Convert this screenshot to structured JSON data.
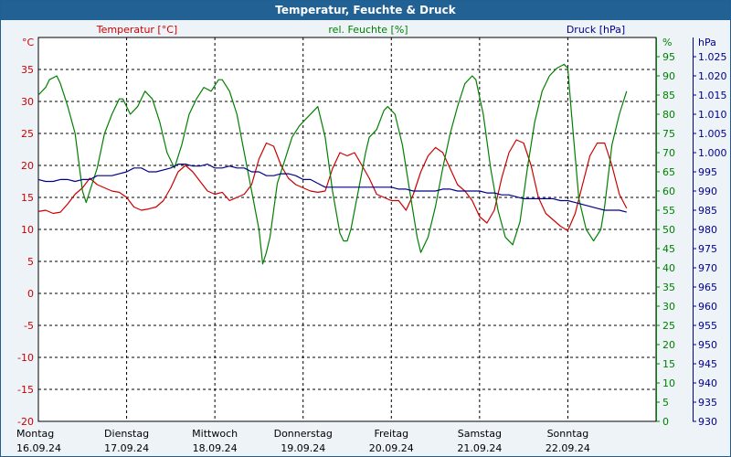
{
  "window": {
    "title": "Temperatur, Feuchte & Druck"
  },
  "colors": {
    "temperature": "#cc0000",
    "humidity": "#008000",
    "pressure": "#00008b",
    "background": "#eef3f8",
    "titlebar": "#226193",
    "grid": "#000000"
  },
  "chart_data": {
    "type": "line",
    "title": "Temperatur, Feuchte & Druck",
    "x_range_hours": [
      0,
      168
    ],
    "x_ticks": [
      {
        "hour": 0,
        "day": "Montag",
        "date": "16.09.24"
      },
      {
        "hour": 24,
        "day": "Dienstag",
        "date": "17.09.24"
      },
      {
        "hour": 48,
        "day": "Mittwoch",
        "date": "18.09.24"
      },
      {
        "hour": 72,
        "day": "Donnerstag",
        "date": "19.09.24"
      },
      {
        "hour": 96,
        "day": "Freitag",
        "date": "20.09.24"
      },
      {
        "hour": 120,
        "day": "Samstag",
        "date": "21.09.24"
      },
      {
        "hour": 144,
        "day": "Sonntag",
        "date": "22.09.24"
      }
    ],
    "axes": {
      "temperature": {
        "label": "Temperatur [°C]",
        "unit": "°C",
        "range": [
          -20,
          40
        ],
        "ticks": [
          -20,
          -15,
          -10,
          -5,
          0,
          5,
          10,
          15,
          20,
          25,
          30,
          35
        ]
      },
      "humidity": {
        "label": "rel. Feuchte [%]",
        "unit": "%",
        "range": [
          0,
          100
        ],
        "ticks": [
          "0",
          "5",
          "10",
          "15",
          "20",
          "25",
          "30",
          "35",
          "40",
          "45",
          "50",
          "55",
          "60",
          "65",
          "70",
          "75",
          "80",
          "85",
          "90",
          "95"
        ]
      },
      "pressure": {
        "label": "Druck [hPa]",
        "unit": "hPa",
        "range": [
          930,
          1030
        ],
        "ticks": [
          "930",
          "935",
          "940",
          "945",
          "950",
          "955",
          "960",
          "965",
          "970",
          "975",
          "980",
          "985",
          "990",
          "995",
          "1.000",
          "1.005",
          "1.010",
          "1.015",
          "1.020",
          "1.025"
        ]
      }
    },
    "series": [
      {
        "name": "Temperatur",
        "axis": "temperature",
        "points": [
          [
            0,
            12.8
          ],
          [
            2,
            13
          ],
          [
            4,
            12.5
          ],
          [
            6,
            12.7
          ],
          [
            8,
            14
          ],
          [
            10,
            15.5
          ],
          [
            12,
            16.5
          ],
          [
            14,
            18
          ],
          [
            16,
            17
          ],
          [
            18,
            16.5
          ],
          [
            20,
            16
          ],
          [
            22,
            15.8
          ],
          [
            24,
            15
          ],
          [
            26,
            13.5
          ],
          [
            28,
            13
          ],
          [
            30,
            13.2
          ],
          [
            32,
            13.5
          ],
          [
            34,
            14.5
          ],
          [
            36,
            16.5
          ],
          [
            38,
            19
          ],
          [
            40,
            20
          ],
          [
            42,
            19
          ],
          [
            44,
            17.5
          ],
          [
            46,
            16
          ],
          [
            48,
            15.5
          ],
          [
            50,
            15.8
          ],
          [
            52,
            14.5
          ],
          [
            54,
            15
          ],
          [
            56,
            15.5
          ],
          [
            58,
            17
          ],
          [
            60,
            21
          ],
          [
            62,
            23.5
          ],
          [
            64,
            23
          ],
          [
            66,
            20
          ],
          [
            68,
            18
          ],
          [
            70,
            17
          ],
          [
            72,
            16.5
          ],
          [
            74,
            16
          ],
          [
            76,
            15.8
          ],
          [
            78,
            16
          ],
          [
            80,
            19.5
          ],
          [
            82,
            22
          ],
          [
            84,
            21.5
          ],
          [
            86,
            22
          ],
          [
            88,
            20
          ],
          [
            90,
            18
          ],
          [
            92,
            15.5
          ],
          [
            94,
            15
          ],
          [
            96,
            14.5
          ],
          [
            98,
            14.5
          ],
          [
            100,
            13
          ],
          [
            102,
            15.5
          ],
          [
            104,
            19
          ],
          [
            106,
            21.5
          ],
          [
            108,
            22.8
          ],
          [
            110,
            22
          ],
          [
            112,
            19.5
          ],
          [
            114,
            17
          ],
          [
            116,
            16
          ],
          [
            118,
            14.5
          ],
          [
            120,
            12
          ],
          [
            122,
            11
          ],
          [
            124,
            13
          ],
          [
            126,
            18
          ],
          [
            128,
            22
          ],
          [
            130,
            24
          ],
          [
            132,
            23.5
          ],
          [
            134,
            20
          ],
          [
            136,
            15
          ],
          [
            138,
            12.5
          ],
          [
            140,
            11.5
          ],
          [
            142,
            10.5
          ],
          [
            144,
            9.8
          ],
          [
            146,
            12.5
          ],
          [
            148,
            17
          ],
          [
            150,
            21.5
          ],
          [
            152,
            23.5
          ],
          [
            154,
            23.5
          ],
          [
            156,
            20
          ],
          [
            158,
            15.5
          ],
          [
            160,
            13.3
          ]
        ]
      },
      {
        "name": "rel. Feuchte",
        "axis": "humidity",
        "points": [
          [
            0,
            85
          ],
          [
            2,
            87
          ],
          [
            3,
            89
          ],
          [
            5,
            90
          ],
          [
            6,
            88
          ],
          [
            8,
            82
          ],
          [
            10,
            75
          ],
          [
            12,
            60
          ],
          [
            13,
            57
          ],
          [
            14,
            60
          ],
          [
            16,
            66
          ],
          [
            18,
            75
          ],
          [
            20,
            80
          ],
          [
            22,
            84
          ],
          [
            23,
            84
          ],
          [
            25,
            80
          ],
          [
            27,
            82
          ],
          [
            29,
            86
          ],
          [
            31,
            84
          ],
          [
            33,
            78
          ],
          [
            35,
            70
          ],
          [
            37,
            66
          ],
          [
            39,
            72
          ],
          [
            41,
            80
          ],
          [
            43,
            84
          ],
          [
            45,
            87
          ],
          [
            47,
            86
          ],
          [
            49,
            89
          ],
          [
            50,
            89
          ],
          [
            52,
            86
          ],
          [
            54,
            80
          ],
          [
            56,
            70
          ],
          [
            58,
            60
          ],
          [
            60,
            50
          ],
          [
            61,
            41
          ],
          [
            62,
            44
          ],
          [
            63,
            48
          ],
          [
            65,
            62
          ],
          [
            67,
            68
          ],
          [
            69,
            74
          ],
          [
            71,
            77
          ],
          [
            73,
            79
          ],
          [
            75,
            81
          ],
          [
            76,
            82
          ],
          [
            78,
            74
          ],
          [
            80,
            60
          ],
          [
            82,
            49
          ],
          [
            83,
            47
          ],
          [
            84,
            47
          ],
          [
            85,
            50
          ],
          [
            87,
            60
          ],
          [
            89,
            70
          ],
          [
            90,
            74
          ],
          [
            92,
            76
          ],
          [
            94,
            81
          ],
          [
            95,
            82
          ],
          [
            97,
            80
          ],
          [
            99,
            72
          ],
          [
            101,
            60
          ],
          [
            103,
            48
          ],
          [
            104,
            44
          ],
          [
            106,
            48
          ],
          [
            108,
            56
          ],
          [
            110,
            66
          ],
          [
            112,
            75
          ],
          [
            114,
            82
          ],
          [
            116,
            88
          ],
          [
            118,
            90
          ],
          [
            119,
            89
          ],
          [
            121,
            80
          ],
          [
            123,
            66
          ],
          [
            125,
            55
          ],
          [
            127,
            48
          ],
          [
            129,
            46
          ],
          [
            131,
            52
          ],
          [
            133,
            66
          ],
          [
            135,
            78
          ],
          [
            137,
            86
          ],
          [
            139,
            90
          ],
          [
            141,
            92
          ],
          [
            143,
            93
          ],
          [
            144,
            92
          ],
          [
            145,
            80
          ],
          [
            147,
            58
          ],
          [
            149,
            50
          ],
          [
            151,
            47
          ],
          [
            153,
            50
          ],
          [
            154,
            56
          ],
          [
            156,
            72
          ],
          [
            158,
            80
          ],
          [
            160,
            86
          ]
        ]
      },
      {
        "name": "Druck",
        "axis": "pressure",
        "points": [
          [
            0,
            993
          ],
          [
            2,
            992.5
          ],
          [
            4,
            992.5
          ],
          [
            6,
            993
          ],
          [
            8,
            993
          ],
          [
            10,
            992.5
          ],
          [
            12,
            993
          ],
          [
            14,
            993
          ],
          [
            16,
            994
          ],
          [
            18,
            994
          ],
          [
            20,
            994
          ],
          [
            22,
            994.5
          ],
          [
            24,
            995
          ],
          [
            26,
            996
          ],
          [
            28,
            996
          ],
          [
            30,
            995
          ],
          [
            32,
            995
          ],
          [
            34,
            995.5
          ],
          [
            36,
            996
          ],
          [
            38,
            997
          ],
          [
            40,
            997
          ],
          [
            42,
            996.5
          ],
          [
            44,
            996.5
          ],
          [
            46,
            997
          ],
          [
            48,
            996
          ],
          [
            50,
            996
          ],
          [
            52,
            996.5
          ],
          [
            54,
            996
          ],
          [
            56,
            996
          ],
          [
            58,
            995
          ],
          [
            60,
            995
          ],
          [
            62,
            994
          ],
          [
            64,
            994
          ],
          [
            66,
            994.5
          ],
          [
            68,
            994.5
          ],
          [
            70,
            994
          ],
          [
            72,
            993
          ],
          [
            74,
            993
          ],
          [
            76,
            992
          ],
          [
            78,
            991
          ],
          [
            80,
            991
          ],
          [
            82,
            991
          ],
          [
            84,
            991
          ],
          [
            86,
            991
          ],
          [
            88,
            991
          ],
          [
            90,
            991
          ],
          [
            92,
            991
          ],
          [
            94,
            991
          ],
          [
            96,
            991
          ],
          [
            98,
            990.5
          ],
          [
            100,
            990.5
          ],
          [
            102,
            990
          ],
          [
            104,
            990
          ],
          [
            106,
            990
          ],
          [
            108,
            990
          ],
          [
            110,
            990.5
          ],
          [
            112,
            990.5
          ],
          [
            114,
            990
          ],
          [
            116,
            990
          ],
          [
            118,
            990
          ],
          [
            120,
            990
          ],
          [
            122,
            989.5
          ],
          [
            124,
            989.5
          ],
          [
            126,
            989
          ],
          [
            128,
            989
          ],
          [
            130,
            988.5
          ],
          [
            132,
            988
          ],
          [
            134,
            988
          ],
          [
            136,
            988
          ],
          [
            138,
            988
          ],
          [
            140,
            988
          ],
          [
            142,
            987.5
          ],
          [
            144,
            987.5
          ],
          [
            146,
            987
          ],
          [
            148,
            986.5
          ],
          [
            150,
            986
          ],
          [
            152,
            985.5
          ],
          [
            154,
            985
          ],
          [
            156,
            985
          ],
          [
            158,
            985
          ],
          [
            160,
            984.5
          ]
        ]
      }
    ]
  }
}
